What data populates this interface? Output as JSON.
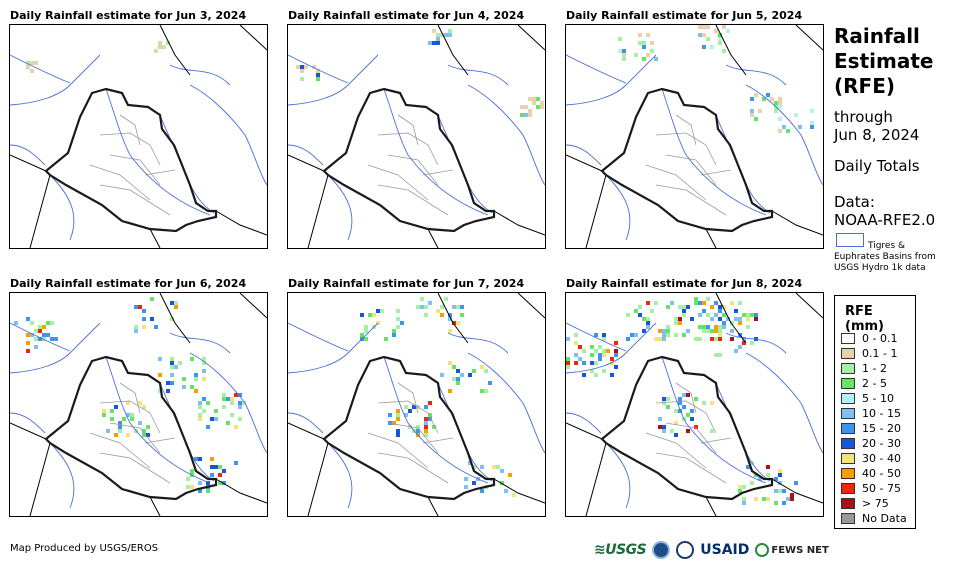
{
  "panels": [
    {
      "title": "Daily Rainfall estimate for Jun 3, 2024",
      "intensity": 0
    },
    {
      "title": "Daily Rainfall estimate for Jun 4, 2024",
      "intensity": 1
    },
    {
      "title": "Daily Rainfall estimate for Jun 5, 2024",
      "intensity": 2
    },
    {
      "title": "Daily Rainfall estimate for Jun 6, 2024",
      "intensity": 3
    },
    {
      "title": "Daily Rainfall estimate for Jun 7, 2024",
      "intensity": 3
    },
    {
      "title": "Daily Rainfall estimate for Jun 8, 2024",
      "intensity": 4
    }
  ],
  "sidebar": {
    "title_line1": "Rainfall",
    "title_line2": "Estimate",
    "title_line3": "(RFE)",
    "through": "through",
    "date": "Jun 8, 2024",
    "totals": "Daily Totals",
    "data_label": "Data:",
    "data_source": "NOAA-RFE2.0",
    "basin_line1": "Tigres &",
    "basin_line2": "Euphrates Basins from",
    "basin_line3": "USGS Hydro 1k data"
  },
  "legend": {
    "title": "RFE (mm)",
    "items": [
      {
        "label": "0 - 0.1",
        "color": "#ffffff"
      },
      {
        "label": "0.1 - 1",
        "color": "#e8d2ae"
      },
      {
        "label": "1 - 2",
        "color": "#a6f0a6"
      },
      {
        "label": "2 - 5",
        "color": "#63e463"
      },
      {
        "label": "5 - 10",
        "color": "#b4f0f4"
      },
      {
        "label": "10 - 15",
        "color": "#7fbff2"
      },
      {
        "label": "15 - 20",
        "color": "#3f95ee"
      },
      {
        "label": "20 - 30",
        "color": "#1a55d8"
      },
      {
        "label": "30 - 40",
        "color": "#f5e37a"
      },
      {
        "label": "40 - 50",
        "color": "#f3a000"
      },
      {
        "label": "50 - 75",
        "color": "#e82a0a"
      },
      {
        "label": "> 75",
        "color": "#a0161a"
      },
      {
        "label": "No Data",
        "color": "#9a9a9a"
      }
    ]
  },
  "footer": {
    "credit": "Map Produced by USGS/EROS",
    "logo_usgs": "≋USGS",
    "logo_usaid": "USAID",
    "logo_fews": "FEWS NET"
  }
}
